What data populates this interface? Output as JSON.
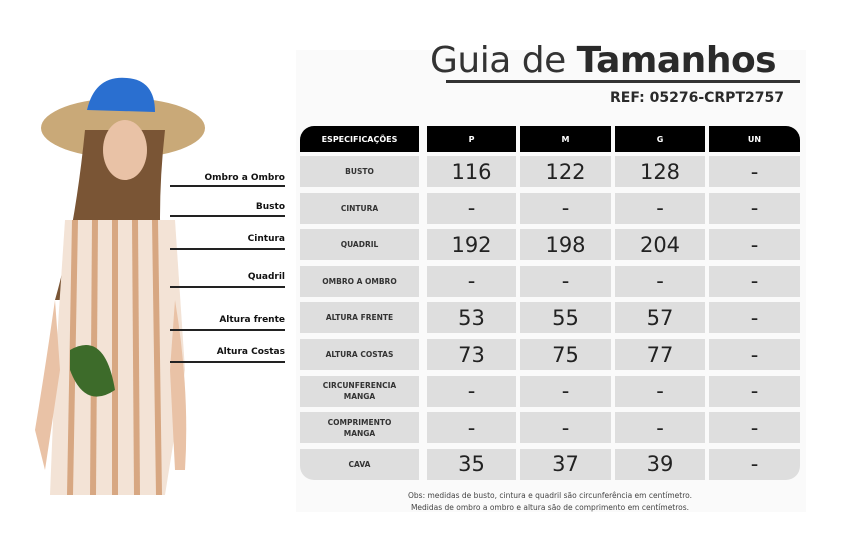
{
  "title": {
    "light": "Guia de ",
    "bold": "Tamanhos"
  },
  "ref": "REF: 05276-CRPT2757",
  "columns": [
    "ESPECIFICAÇÕES",
    "P",
    "M",
    "G",
    "UN"
  ],
  "rows": [
    {
      "spec": "BUSTO",
      "values": [
        "116",
        "122",
        "128",
        "-"
      ]
    },
    {
      "spec": "CINTURA",
      "values": [
        "-",
        "-",
        "-",
        "-"
      ]
    },
    {
      "spec": "QUADRIL",
      "values": [
        "192",
        "198",
        "204",
        "-"
      ]
    },
    {
      "spec": "OMBRO A OMBRO",
      "values": [
        "-",
        "-",
        "-",
        "-"
      ]
    },
    {
      "spec": "ALTURA FRENTE",
      "values": [
        "53",
        "55",
        "57",
        "-"
      ]
    },
    {
      "spec": "ALTURA COSTAS",
      "values": [
        "73",
        "75",
        "77",
        "-"
      ]
    },
    {
      "spec": "CIRCUNFERENCIA MANGA",
      "values": [
        "-",
        "-",
        "-",
        "-"
      ]
    },
    {
      "spec": "COMPRIMENTO MANGA",
      "values": [
        "-",
        "-",
        "-",
        "-"
      ]
    },
    {
      "spec": "CAVA",
      "values": [
        "35",
        "37",
        "39",
        "-"
      ]
    }
  ],
  "body_labels": [
    "Ombro a Ombro",
    "Busto",
    "Cintura",
    "Quadril",
    "Altura frente",
    "Altura Costas"
  ],
  "note": [
    "Obs: medidas de busto, cintura e quadril são circunferência em centímetro.",
    "Medidas de ombro a ombro e altura são de comprimento em centímetros."
  ]
}
